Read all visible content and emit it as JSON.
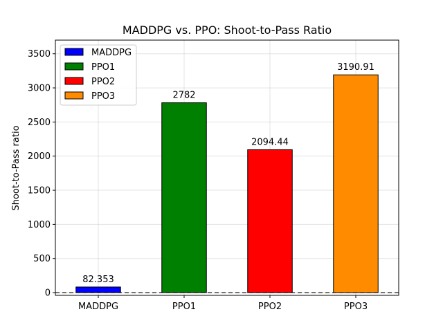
{
  "chart_data": {
    "type": "bar",
    "title": "MADDPG vs. PPO: Shoot-to-Pass Ratio",
    "xlabel": "",
    "ylabel": "Shoot-to-Pass ratio",
    "categories": [
      "MADDPG",
      "PPO1",
      "PPO2",
      "PPO3"
    ],
    "values": [
      82.353,
      2782,
      2094.44,
      3190.91
    ],
    "value_labels": [
      "82.353",
      "2782",
      "2094.44",
      "3190.91"
    ],
    "colors": [
      "#0000ff",
      "#008000",
      "#ff0000",
      "#ff8c00"
    ],
    "ylim": [
      -40,
      3700
    ],
    "yticks": [
      0,
      500,
      1000,
      1500,
      2000,
      2500,
      3000,
      3500
    ],
    "grid": true,
    "baseline": {
      "value": 0,
      "style": "dashed"
    },
    "legend": {
      "placement": "top-left",
      "entries": [
        "MADDPG",
        "PPO1",
        "PPO2",
        "PPO3"
      ]
    }
  }
}
